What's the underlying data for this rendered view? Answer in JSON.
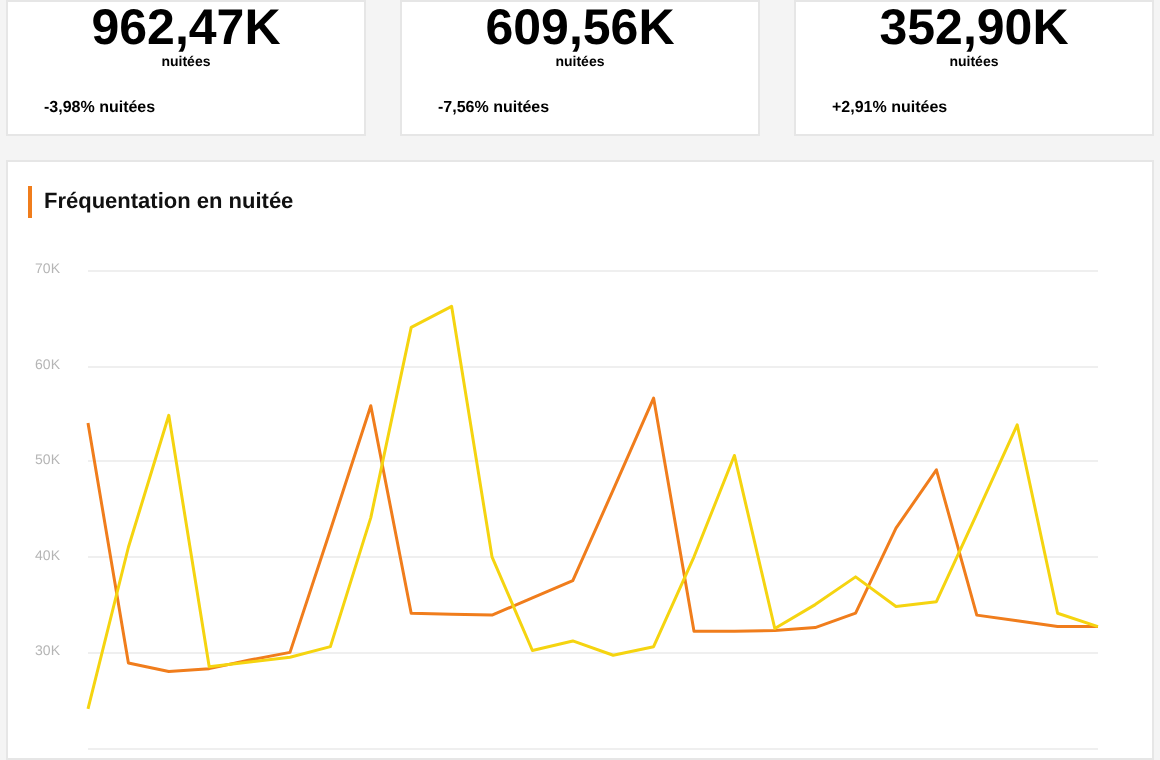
{
  "chart_data": {
    "type": "line",
    "title": "Fréquentation en nuitée",
    "annotations": [
      "962,47K",
      "nuitées",
      "-3,98% nuitées",
      "609,56K",
      "nuitées",
      "-7,56% nuitées",
      "352,90K",
      "nuitées",
      "+2,91% nuitées"
    ],
    "categories": [
      null,
      null,
      null,
      null,
      null,
      null,
      null,
      null,
      null,
      null,
      null,
      null,
      null,
      null,
      null,
      null,
      null,
      null,
      null,
      null,
      null,
      null,
      null,
      null,
      null,
      null
    ],
    "series": [
      {
        "color": "#f07d1c",
        "values": [
          54000,
          28900,
          28000,
          28300,
          29200,
          30000,
          42800,
          55800,
          34100,
          34000,
          33900,
          35700,
          37500,
          47000,
          56600,
          32200,
          32200,
          32300,
          32600,
          34100,
          43000,
          49100,
          33900,
          33300,
          32700,
          32700
        ]
      },
      {
        "color": "#f5d410",
        "values": [
          24100,
          41000,
          54800,
          28500,
          29000,
          29500,
          30600,
          44100,
          64000,
          66200,
          40000,
          30200,
          31200,
          29700,
          30600,
          40000,
          50600,
          32500,
          35000,
          37900,
          34800,
          35300,
          44500,
          53800,
          34100,
          32700
        ]
      }
    ],
    "ylim": [
      20000,
      70000
    ],
    "yticks": [
      {
        "value": 20000,
        "label": null
      },
      {
        "value": 30000,
        "label": "30K"
      },
      {
        "value": 40000,
        "label": "40K"
      },
      {
        "value": 50000,
        "label": "50K"
      },
      {
        "value": 60000,
        "label": "60K"
      },
      {
        "value": 70000,
        "label": "70K"
      }
    ],
    "grid": "y",
    "marker": "none",
    "line_style": "solid",
    "tick_labels": "y"
  }
}
